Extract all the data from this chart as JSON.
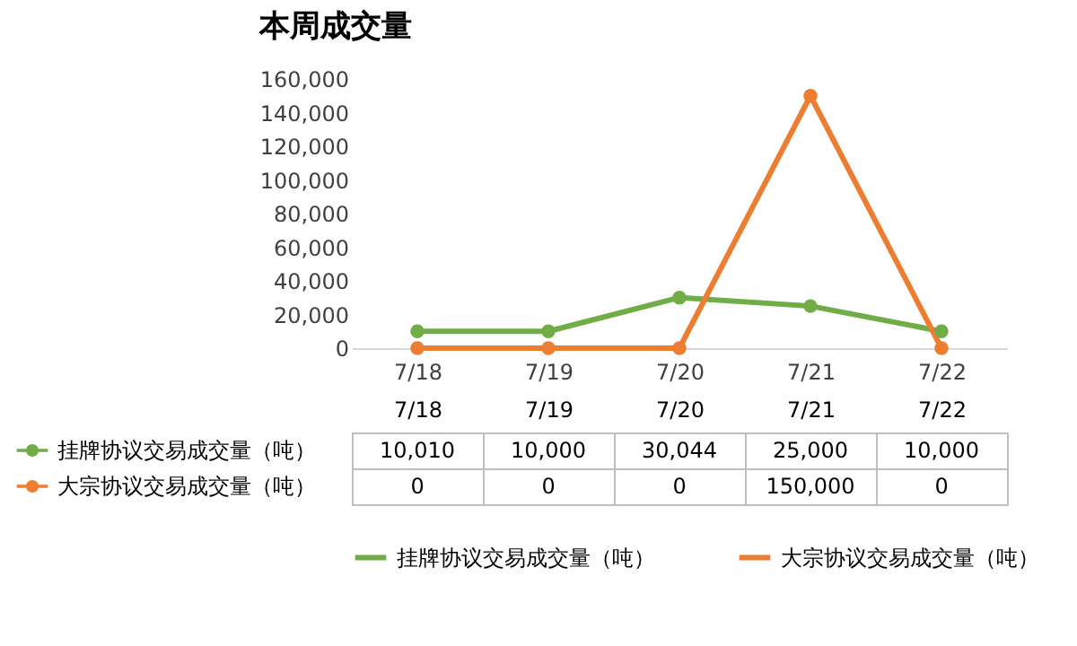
{
  "chart_data": {
    "type": "line",
    "title": "本周成交量",
    "categories": [
      "7/18",
      "7/19",
      "7/20",
      "7/21",
      "7/22"
    ],
    "series": [
      {
        "name": "挂牌协议交易成交量（吨）",
        "color": "#70ad47",
        "values": [
          10010,
          10000,
          30044,
          25000,
          10000
        ],
        "value_labels": [
          "10,010",
          "10,000",
          "30,044",
          "25,000",
          "10,000"
        ]
      },
      {
        "name": "大宗协议交易成交量（吨）",
        "color": "#ed7d31",
        "values": [
          0,
          0,
          0,
          150000,
          0
        ],
        "value_labels": [
          "0",
          "0",
          "0",
          "150,000",
          "0"
        ]
      }
    ],
    "ylim": [
      0,
      160000
    ],
    "yticks": [
      0,
      {
        "value": 20000,
        "label": "20,000"
      },
      {
        "value": 40000,
        "label": "40,000"
      },
      {
        "value": 60000,
        "label": "60,000"
      },
      {
        "value": 80000,
        "label": "80,000"
      },
      {
        "value": 100000,
        "label": "100,000"
      },
      {
        "value": 120000,
        "label": "120,000"
      },
      {
        "value": 140000,
        "label": "140,000"
      },
      {
        "value": 160000,
        "label": "160,000"
      }
    ],
    "legend": "bottom",
    "marker": "circle",
    "line_style": "solid"
  }
}
